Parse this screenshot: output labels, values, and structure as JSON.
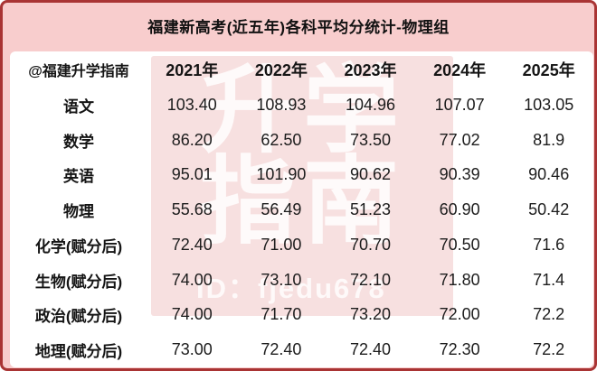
{
  "page": {
    "title": "福建新高考(近五年)各科平均分统计-物理组"
  },
  "watermark": {
    "seal_chars": "升学\n指南",
    "id_text": "ID：fjedu678"
  },
  "colors": {
    "card_background": "#f8cdcd",
    "border_red": "#a93434",
    "panel_white": "#ffffff",
    "seal_pink": "rgba(219,112,112,0.22)",
    "text_black": "#151515",
    "watermark_white": "rgba(255,255,255,0.82)"
  },
  "table": {
    "header": [
      "@福建升学指南",
      "2021年",
      "2022年",
      "2023年",
      "2024年",
      "2025年"
    ],
    "rows": [
      {
        "label": "语文",
        "values": [
          "103.40",
          "108.93",
          "104.96",
          "107.07",
          "103.05"
        ]
      },
      {
        "label": "数学",
        "values": [
          "86.20",
          "62.50",
          "73.50",
          "77.02",
          "81.9"
        ]
      },
      {
        "label": "英语",
        "values": [
          "95.01",
          "101.90",
          "90.62",
          "90.39",
          "90.46"
        ]
      },
      {
        "label": "物理",
        "values": [
          "55.68",
          "56.49",
          "51.23",
          "60.90",
          "50.42"
        ]
      },
      {
        "label": "化学(赋分后)",
        "values": [
          "72.40",
          "71.00",
          "70.70",
          "70.50",
          "71.6"
        ]
      },
      {
        "label": "生物(赋分后)",
        "values": [
          "74.00",
          "73.10",
          "72.10",
          "71.80",
          "71.4"
        ]
      },
      {
        "label": "政治(赋分后)",
        "values": [
          "74.00",
          "71.70",
          "73.20",
          "72.00",
          "72.2"
        ]
      },
      {
        "label": "地理(赋分后)",
        "values": [
          "73.00",
          "72.40",
          "72.40",
          "72.30",
          "72.2"
        ]
      }
    ]
  },
  "chart_data": {
    "type": "table",
    "title": "福建新高考(近五年)各科平均分统计-物理组",
    "categories": [
      "2021年",
      "2022年",
      "2023年",
      "2024年",
      "2025年"
    ],
    "series": [
      {
        "name": "语文",
        "values": [
          103.4,
          108.93,
          104.96,
          107.07,
          103.05
        ]
      },
      {
        "name": "数学",
        "values": [
          86.2,
          62.5,
          73.5,
          77.02,
          81.9
        ]
      },
      {
        "name": "英语",
        "values": [
          95.01,
          101.9,
          90.62,
          90.39,
          90.46
        ]
      },
      {
        "name": "物理",
        "values": [
          55.68,
          56.49,
          51.23,
          60.9,
          50.42
        ]
      },
      {
        "name": "化学(赋分后)",
        "values": [
          72.4,
          71.0,
          70.7,
          70.5,
          71.6
        ]
      },
      {
        "name": "生物(赋分后)",
        "values": [
          74.0,
          73.1,
          72.1,
          71.8,
          71.4
        ]
      },
      {
        "name": "政治(赋分后)",
        "values": [
          74.0,
          71.7,
          73.2,
          72.0,
          72.2
        ]
      },
      {
        "name": "地理(赋分后)",
        "values": [
          73.0,
          72.4,
          72.4,
          72.3,
          72.2
        ]
      }
    ]
  }
}
